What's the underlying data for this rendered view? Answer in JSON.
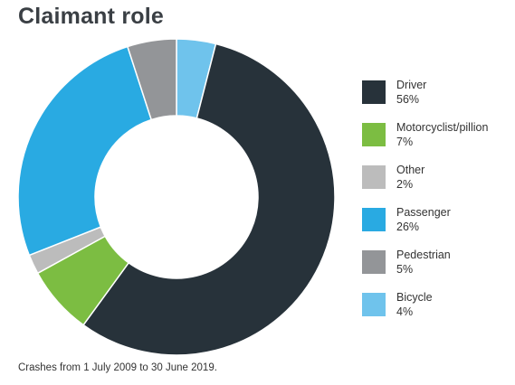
{
  "chart_data": {
    "type": "pie",
    "title": "Claimant role",
    "slices": [
      {
        "label": "Driver",
        "value": 56,
        "value_label": "56%",
        "color": "#27323a"
      },
      {
        "label": "Motorcyclist/pillion",
        "value": 7,
        "value_label": "7%",
        "color": "#7cbd42"
      },
      {
        "label": "Other",
        "value": 2,
        "value_label": "2%",
        "color": "#bcbcbc"
      },
      {
        "label": "Passenger",
        "value": 26,
        "value_label": "26%",
        "color": "#29aae2"
      },
      {
        "label": "Pedestrian",
        "value": 5,
        "value_label": "5%",
        "color": "#939598"
      },
      {
        "label": "Bicycle",
        "value": 4,
        "value_label": "4%",
        "color": "#6fc3ec"
      }
    ],
    "legend_placement": "right",
    "footnote": "Crashes from 1 July 2009 to 30 June 2019."
  }
}
